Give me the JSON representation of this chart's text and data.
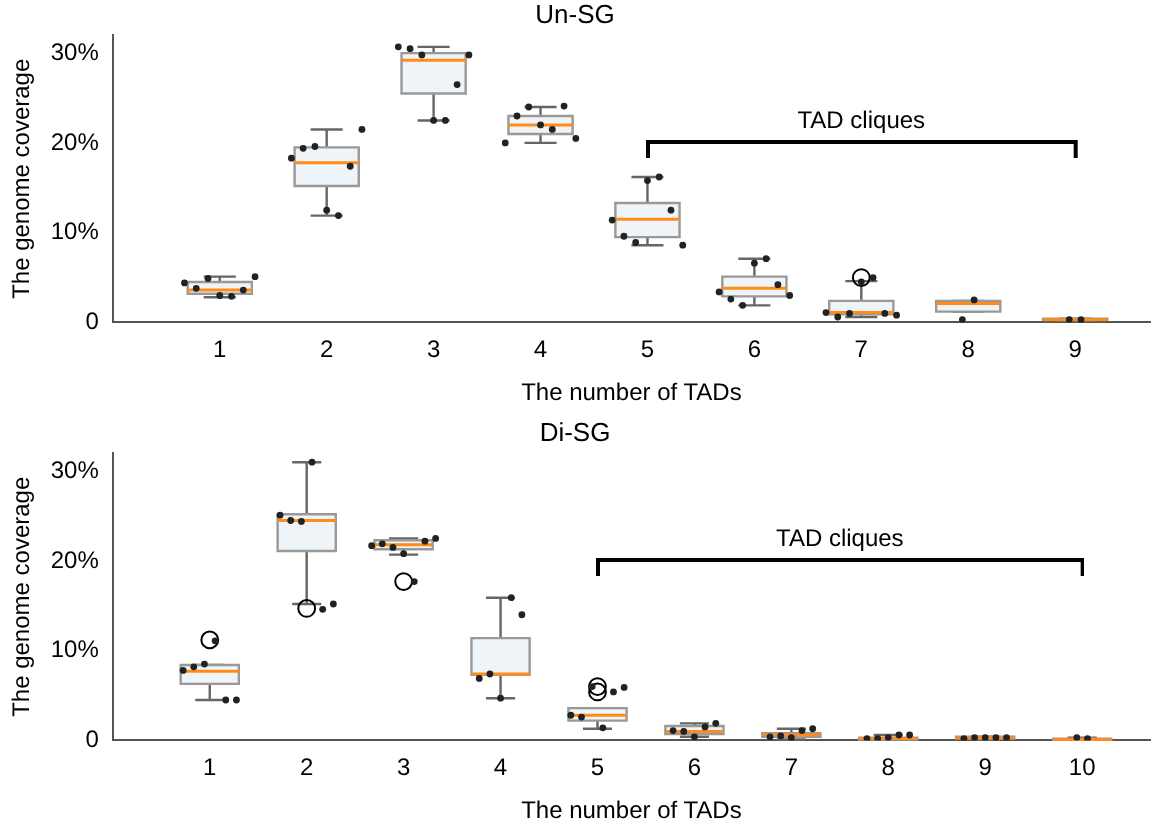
{
  "chart_data": [
    {
      "type": "box",
      "title": "Un-SG",
      "xlabel": "The number of TADs",
      "ylabel": "The genome coverage",
      "annotations": [
        "TAD cliques"
      ],
      "grid": false,
      "legend": false,
      "categories": [
        "1",
        "2",
        "3",
        "4",
        "5",
        "6",
        "7",
        "8",
        "9"
      ],
      "ylim": [
        0,
        32
      ],
      "yticks": [
        {
          "value": 0,
          "label": "0"
        },
        {
          "value": 10,
          "label": "10%"
        },
        {
          "value": 20,
          "label": "20%"
        },
        {
          "value": 30,
          "label": "30%"
        }
      ],
      "series": [
        {
          "type": "box",
          "color": "#eef4f7",
          "boxes": [
            {
              "low": 2.8,
              "q1": 3.2,
              "median": 3.6,
              "q3": 4.5,
              "high": 5.1
            },
            {
              "low": 11.9,
              "q1": 15.2,
              "median": 17.8,
              "q3": 19.5,
              "high": 21.5
            },
            {
              "low": 22.5,
              "q1": 25.5,
              "median": 29.2,
              "q3": 30.0,
              "high": 30.7
            },
            {
              "low": 20.0,
              "q1": 21.0,
              "median": 22.0,
              "q3": 23.0,
              "high": 24.0
            },
            {
              "low": 8.6,
              "q1": 9.5,
              "median": 11.5,
              "q3": 13.3,
              "high": 16.2
            },
            {
              "low": 1.9,
              "q1": 2.9,
              "median": 3.8,
              "q3": 5.1,
              "high": 7.1
            },
            {
              "low": 0.6,
              "q1": 0.9,
              "median": 1.1,
              "q3": 2.4,
              "high": 4.6,
              "outliers": [
                5.0
              ]
            },
            {
              "low": 1.2,
              "q1": 1.2,
              "median": 2.1,
              "q3": 2.4,
              "high": 2.4
            },
            {
              "low": 0.2,
              "q1": 0.3,
              "median": 0.3,
              "q3": 0.4,
              "high": 0.4
            }
          ]
        },
        {
          "type": "scatter",
          "color": "#222222",
          "marker": "circle",
          "x": [
            "1",
            "1",
            "1",
            "1",
            "1",
            "1",
            "1",
            "2",
            "2",
            "2",
            "2",
            "2",
            "2",
            "2",
            "3",
            "3",
            "3",
            "3",
            "3",
            "3",
            "3",
            "4",
            "4",
            "4",
            "4",
            "4",
            "4",
            "4",
            "5",
            "5",
            "5",
            "5",
            "5",
            "5",
            "5",
            "6",
            "6",
            "6",
            "6",
            "6",
            "6",
            "6",
            "7",
            "7",
            "7",
            "7",
            "7",
            "7",
            "7",
            "8",
            "8",
            "9",
            "9"
          ],
          "values": [
            4.4,
            3.8,
            4.9,
            3.0,
            2.9,
            3.6,
            5.1,
            18.3,
            19.4,
            19.6,
            12.5,
            11.9,
            17.4,
            21.5,
            30.7,
            30.5,
            29.8,
            22.5,
            22.5,
            26.5,
            29.8,
            20.0,
            23.0,
            24.0,
            22.0,
            21.5,
            24.1,
            20.5,
            11.4,
            9.6,
            8.9,
            15.8,
            16.2,
            12.5,
            8.6,
            3.4,
            2.6,
            1.9,
            6.6,
            7.1,
            4.2,
            3.0,
            1.1,
            0.6,
            1.0,
            4.5,
            5.0,
            1.0,
            0.8,
            0.3,
            2.5,
            0.3,
            0.3
          ]
        }
      ]
    },
    {
      "type": "box",
      "title": "Di-SG",
      "xlabel": "The number of TADs",
      "ylabel": "The genome coverage",
      "annotations": [
        "TAD cliques"
      ],
      "grid": false,
      "legend": false,
      "categories": [
        "1",
        "2",
        "3",
        "4",
        "5",
        "6",
        "7",
        "8",
        "9",
        "10"
      ],
      "ylim": [
        0,
        32
      ],
      "yticks": [
        {
          "value": 0,
          "label": "0"
        },
        {
          "value": 10,
          "label": "10%"
        },
        {
          "value": 20,
          "label": "20%"
        },
        {
          "value": 30,
          "label": "30%"
        }
      ],
      "series": [
        {
          "type": "box",
          "color": "#eef4f7",
          "boxes": [
            {
              "low": 4.5,
              "q1": 6.3,
              "median": 7.7,
              "q3": 8.4,
              "high": 8.4,
              "outliers": [
                11.2
              ]
            },
            {
              "low": 15.2,
              "q1": 21.1,
              "median": 24.5,
              "q3": 25.2,
              "high": 31.0,
              "outliers": [
                14.7
              ]
            },
            {
              "low": 20.7,
              "q1": 21.3,
              "median": 21.8,
              "q3": 22.3,
              "high": 22.5,
              "outliers": [
                17.7
              ]
            },
            {
              "low": 4.7,
              "q1": 7.3,
              "median": 7.4,
              "q3": 11.4,
              "high": 15.9
            },
            {
              "low": 1.3,
              "q1": 2.2,
              "median": 2.8,
              "q3": 3.6,
              "high": 3.6,
              "outliers": [
                5.4,
                6.0
              ]
            },
            {
              "low": 0.4,
              "q1": 0.7,
              "median": 1.0,
              "q3": 1.6,
              "high": 1.9
            },
            {
              "low": 0.1,
              "q1": 0.4,
              "median": 0.6,
              "q3": 0.8,
              "high": 1.3
            },
            {
              "low": 0.1,
              "q1": 0.1,
              "median": 0.2,
              "q3": 0.3,
              "high": 0.6
            },
            {
              "low": 0.1,
              "q1": 0.2,
              "median": 0.3,
              "q3": 0.4,
              "high": 0.4
            },
            {
              "low": 0.1,
              "q1": 0.1,
              "median": 0.1,
              "q3": 0.2,
              "high": 0.3
            }
          ]
        },
        {
          "type": "scatter",
          "color": "#222222",
          "marker": "circle",
          "x": [
            "1",
            "1",
            "1",
            "1",
            "1",
            "1",
            "2",
            "2",
            "2",
            "2",
            "2",
            "2",
            "3",
            "3",
            "3",
            "3",
            "3",
            "3",
            "3",
            "4",
            "4",
            "4",
            "4",
            "4",
            "5",
            "5",
            "5",
            "5",
            "5",
            "5",
            "6",
            "6",
            "6",
            "6",
            "6",
            "7",
            "7",
            "7",
            "7",
            "7",
            "8",
            "8",
            "8",
            "8",
            "8",
            "9",
            "9",
            "9",
            "9",
            "9",
            "10",
            "10"
          ],
          "values": [
            7.8,
            8.2,
            8.5,
            11.1,
            4.5,
            4.5,
            25.1,
            24.5,
            24.4,
            31.0,
            14.6,
            15.2,
            21.7,
            21.9,
            21.5,
            20.8,
            17.7,
            22.2,
            22.5,
            6.9,
            7.4,
            4.7,
            15.9,
            14.0,
            2.8,
            2.6,
            6.0,
            1.4,
            5.4,
            5.9,
            1.1,
            1.0,
            0.4,
            1.5,
            1.9,
            0.4,
            0.5,
            0.3,
            1.1,
            1.3,
            0.2,
            0.2,
            0.3,
            0.6,
            0.6,
            0.2,
            0.3,
            0.3,
            0.3,
            0.3,
            0.3,
            0.2
          ]
        }
      ]
    }
  ]
}
